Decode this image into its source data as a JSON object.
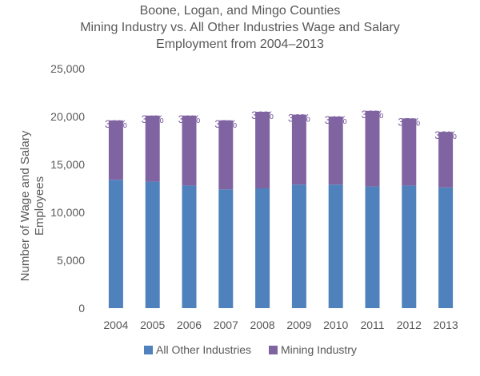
{
  "chart_data": {
    "type": "bar",
    "stacked": true,
    "title_lines": [
      "Boone, Logan, and Mingo Counties",
      "Mining Industry vs. All Other Industries Wage and Salary",
      "Employment from 2004–2013"
    ],
    "xlabel": "",
    "ylabel_lines": [
      "Number of Wage and Salary",
      "Employees"
    ],
    "ylim": [
      0,
      25000
    ],
    "y_ticks": [
      0,
      5000,
      10000,
      15000,
      20000,
      25000
    ],
    "y_tick_labels": [
      "0",
      "5,000",
      "10,000",
      "15,000",
      "20,000",
      "25,000"
    ],
    "categories": [
      "2004",
      "2005",
      "2006",
      "2007",
      "2008",
      "2009",
      "2010",
      "2011",
      "2012",
      "2013"
    ],
    "series": [
      {
        "name": "All Other Industries",
        "color": "#4F81BD",
        "values": [
          13400,
          13200,
          12800,
          12400,
          12500,
          12900,
          12900,
          12700,
          12800,
          12600
        ]
      },
      {
        "name": "Mining Industry",
        "color": "#8064A2",
        "values": [
          6200,
          6900,
          7300,
          7200,
          8000,
          7300,
          7100,
          7900,
          7000,
          5800
        ]
      }
    ],
    "data_labels": [
      "32%",
      "34%",
      "36%",
      "37%",
      "39%",
      "36%",
      "36%",
      "38%",
      "35%",
      "32%"
    ],
    "data_label_color": "#8064A2",
    "grid": false,
    "legend_position": "bottom"
  }
}
